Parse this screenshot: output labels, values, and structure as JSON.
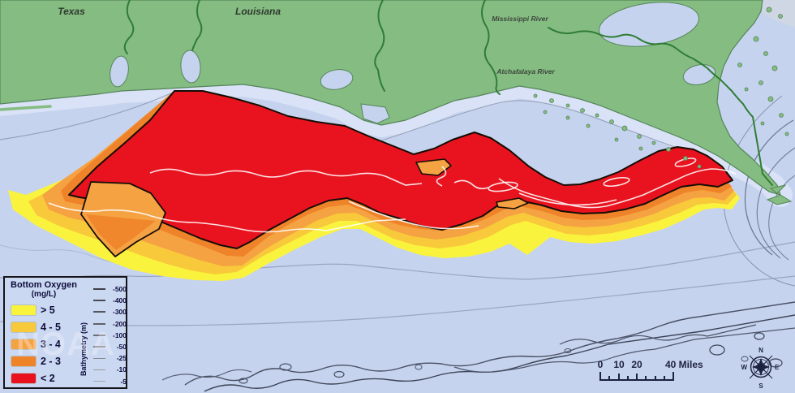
{
  "map": {
    "labels": {
      "state_1": "Texas",
      "state_2": "Louisiana",
      "river_1": "Mississippi River",
      "river_2": "Atchafalaya River"
    },
    "watermark": "NOAA"
  },
  "legend": {
    "title_line1": "Bottom Oxygen",
    "title_line2": "(mg/L)",
    "items": [
      {
        "label": "> 5",
        "color": "#FAF33E"
      },
      {
        "label": "4 - 5",
        "color": "#F8C93A"
      },
      {
        "label": "3 - 4",
        "color": "#F5A243"
      },
      {
        "label": "2 - 3",
        "color": "#EF8329"
      },
      {
        "label": "< 2",
        "color": "#E8131F"
      }
    ],
    "bathymetry": {
      "label": "Bathymetry (m)",
      "values": [
        "-500",
        "-400",
        "-300",
        "-200",
        "-100",
        "-50",
        "-25",
        "-10",
        "-5"
      ]
    }
  },
  "scale_bar": {
    "tick_0": "0",
    "tick_10": "10",
    "tick_20": "20",
    "end_label": "40 Miles"
  },
  "compass": {
    "north": "N",
    "east": "E",
    "south": "S",
    "west": "W"
  },
  "colors": {
    "sea": "#C5D3EE",
    "nearshore": "#D9E2F6",
    "land": "#85BC82",
    "hypoxia_severe": "#E8131F",
    "contour_gray": "#9AA6C0"
  }
}
